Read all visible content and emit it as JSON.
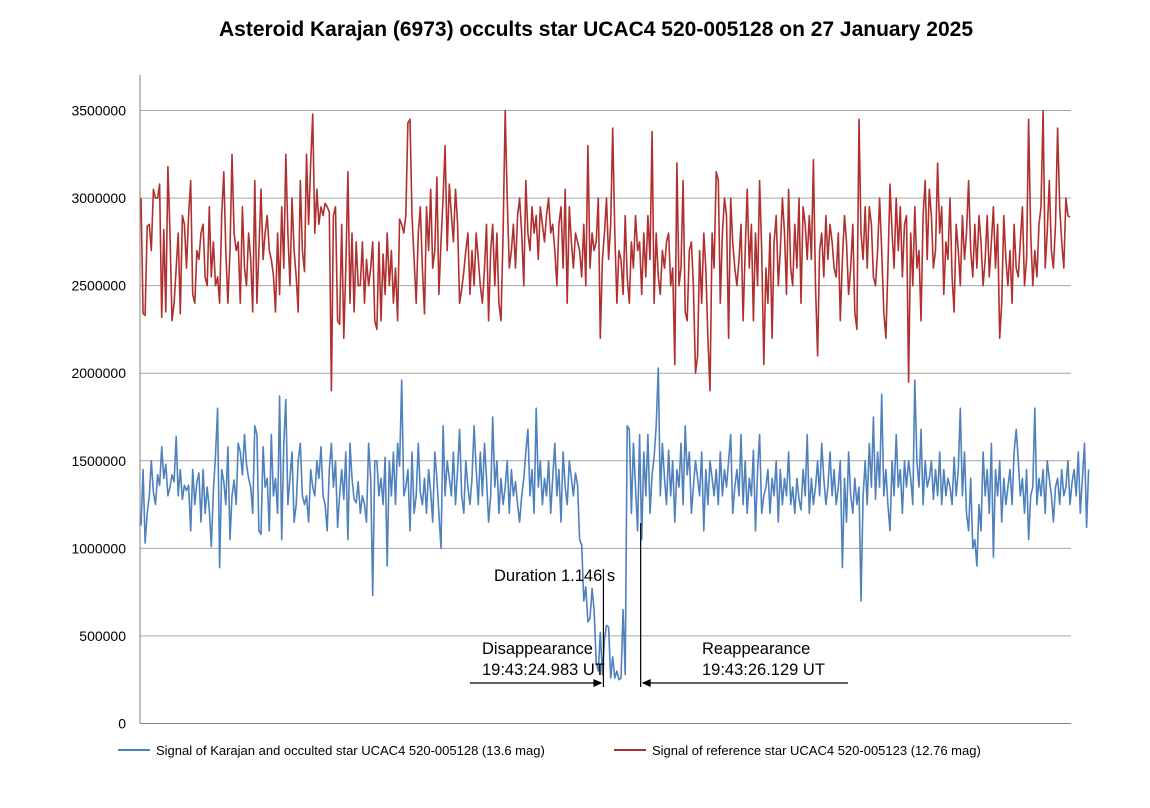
{
  "chart_data": {
    "type": "line",
    "title": "Asteroid Karajan (6973) occults star UCAC4 520-005128 on 27 January 2025",
    "xlabel": "",
    "ylabel": "",
    "ylim": [
      0,
      3700000
    ],
    "yticks": [
      0,
      500000,
      1000000,
      1500000,
      2000000,
      2500000,
      3000000,
      3500000
    ],
    "ytick_labels": [
      "0",
      "500000",
      "1000000",
      "1500000",
      "2000000",
      "2500000",
      "3000000",
      "3500000"
    ],
    "grid": true,
    "legend_position": "bottom",
    "x_samples": 450,
    "series": [
      {
        "name": "Signal of Karajan and occulted star UCAC4 520-005128 (13.6 mag)",
        "color": "#4f81bd",
        "values": [
          1130000,
          1450000,
          1030000,
          1200000,
          1300000,
          1500000,
          1320000,
          1250000,
          1420000,
          1360000,
          1580000,
          1400000,
          1480000,
          1300000,
          1350000,
          1420000,
          1380000,
          1640000,
          1300000,
          1450000,
          1280000,
          1360000,
          1330000,
          1360000,
          1100000,
          1450000,
          1250000,
          1380000,
          1430000,
          1150000,
          1450000,
          1200000,
          1350000,
          1220000,
          1010000,
          1330000,
          1530000,
          1800000,
          890000,
          1450000,
          1380000,
          1250000,
          1580000,
          1050000,
          1300000,
          1390000,
          1250000,
          1600000,
          1550000,
          1420000,
          1650000,
          1480000,
          1400000,
          1350000,
          1200000,
          1700000,
          1650000,
          1100000,
          1080000,
          1580000,
          1350000,
          1400000,
          1100000,
          1650000,
          1300000,
          1400000,
          1200000,
          1870000,
          1050000,
          1600000,
          1850000,
          1250000,
          1400000,
          1550000,
          1150000,
          1250000,
          1500000,
          1600000,
          1300000,
          1250000,
          1300000,
          1150000,
          1450000,
          1350000,
          1300000,
          1500000,
          1400000,
          1580000,
          1300000,
          1250000,
          1100000,
          1450000,
          1600000,
          1350000,
          1500000,
          1120000,
          1300000,
          1450000,
          1280000,
          1550000,
          1050000,
          1600000,
          1400000,
          1280000,
          1260000,
          1380000,
          1200000,
          1300000,
          1250000,
          1150000,
          1600000,
          1400000,
          730000,
          1500000,
          1500000,
          1300000,
          1400000,
          1250000,
          1520000,
          900000,
          1500000,
          1300000,
          1550000,
          1250000,
          1600000,
          1470000,
          1960000,
          1300000,
          1350000,
          1450000,
          1100000,
          1550000,
          1200000,
          1300000,
          1600000,
          1320000,
          1250000,
          1400000,
          1200000,
          1450000,
          1320000,
          1150000,
          1550000,
          1400000,
          1200000,
          1000000,
          1700000,
          1300000,
          1500000,
          1400000,
          1300000,
          1550000,
          1250000,
          1450000,
          1680000,
          1300000,
          1200000,
          1500000,
          1350000,
          1250000,
          1400000,
          1700000,
          1450000,
          1250000,
          1550000,
          1300000,
          1600000,
          1400000,
          1150000,
          1300000,
          1750000,
          1350000,
          1500000,
          1200000,
          1400000,
          1250000,
          1350000,
          1500000,
          1200000,
          1450000,
          1300000,
          1380000,
          1250000,
          1150000,
          1300000,
          1400000,
          1550000,
          1680000,
          1300000,
          1450000,
          1200000,
          1800000,
          1350000,
          1500000,
          1250000,
          1400000,
          1300000,
          1500000,
          1200000,
          1400000,
          1600000,
          1300000,
          1450000,
          1150000,
          1550000,
          1350000,
          1250000,
          1500000,
          1400000,
          1300000,
          1430000,
          1360000,
          1050000,
          1020000,
          700000,
          780000,
          580000,
          600000,
          770000,
          650000,
          350000,
          300000,
          520000,
          280000,
          480000,
          560000,
          550000,
          260000,
          380000,
          260000,
          300000,
          250000,
          260000,
          650000,
          280000,
          1700000,
          1680000,
          1200000,
          1600000,
          1350000,
          1100000,
          1650000,
          1050000,
          1550000,
          1300000,
          1650000,
          1200000,
          1420000,
          1520000,
          1700000,
          2030000,
          1300000,
          1600000,
          1400000,
          1250000,
          1560000,
          1300000,
          1500000,
          1150000,
          1450000,
          1350000,
          1600000,
          1250000,
          1700000,
          1420000,
          1550000,
          1200000,
          1350000,
          1500000,
          1400000,
          1300000,
          1550000,
          1100000,
          1450000,
          1250000,
          1500000,
          1400000,
          1300000,
          1450000,
          1250000,
          1550000,
          1300000,
          1450000,
          1350000,
          1500000,
          1650000,
          1200000,
          1350000,
          1450000,
          1300000,
          1650000,
          1250000,
          1500000,
          1200000,
          1400000,
          1300000,
          1560000,
          1100000,
          1450000,
          1650000,
          1200000,
          1300000,
          1350000,
          1450000,
          1200000,
          1400000,
          1300000,
          1500000,
          1150000,
          1450000,
          1250000,
          1400000,
          1300000,
          1550000,
          1250000,
          1350000,
          1200000,
          1400000,
          1280000,
          1220000,
          1450000,
          1300000,
          1650000,
          1200000,
          1400000,
          1250000,
          1350000,
          1500000,
          1300000,
          1600000,
          1400000,
          1250000,
          1350000,
          1550000,
          1300000,
          1450000,
          1250000,
          1350000,
          1500000,
          890000,
          1400000,
          1150000,
          1550000,
          1300000,
          1200000,
          1400000,
          1250000,
          1350000,
          700000,
          1300000,
          1500000,
          1250000,
          1600000,
          1350000,
          1750000,
          1280000,
          1550000,
          1350000,
          1880000,
          1300000,
          1450000,
          1250000,
          1100000,
          1500000,
          1300000,
          1650000,
          1350000,
          1450000,
          1200000,
          1500000,
          1350000,
          1500000,
          1400000,
          1250000,
          1960000,
          1500000,
          1350000,
          1680000,
          1250000,
          1500000,
          1350000,
          1400000,
          1500000,
          1280000,
          1450000,
          1300000,
          1550000,
          1250000,
          1450000,
          1300000,
          1400000,
          1350000,
          1250000,
          1520000,
          1300000,
          1450000,
          1800000,
          1300000,
          1550000,
          1200000,
          1100000,
          1400000,
          1000000,
          1050000,
          900000,
          1250000,
          1100000,
          1550000,
          1300000,
          1450000,
          1200000,
          1600000,
          950000,
          1450000,
          1300000,
          1500000,
          1150000,
          1400000,
          1250000,
          1350000,
          1450000,
          1250000,
          1550000,
          1680000,
          1500000,
          1300000,
          1400000,
          1200000,
          1450000,
          1050000,
          1300000,
          1350000,
          1800000,
          1250000,
          1400000,
          1300000,
          1450000,
          1200000,
          1500000,
          1400000,
          1300000,
          1150000,
          1350000,
          1400000,
          1250000,
          1450000,
          1300000,
          1350000,
          1500000,
          1250000,
          1380000,
          1450000,
          1300000,
          1550000,
          1200000,
          1400000,
          1600000,
          1120000,
          1450000
        ]
      },
      {
        "name": "Signal of reference star UCAC4 520-005123 (12.76 mag)",
        "color": "#b03030",
        "values": [
          3000000,
          2340000,
          2330000,
          2840000,
          2850000,
          2700000,
          3050000,
          3000000,
          3000000,
          3080000,
          2320000,
          2820000,
          2350000,
          3180000,
          2800000,
          2300000,
          2400000,
          2600000,
          2800000,
          2340000,
          2900000,
          2850000,
          2600000,
          2900000,
          3100000,
          2450000,
          2400000,
          2700000,
          2650000,
          2800000,
          2850000,
          2550000,
          2500000,
          2950000,
          2550000,
          2750000,
          2500000,
          2550000,
          2400000,
          2900000,
          3150000,
          2700000,
          2400000,
          2700000,
          3250000,
          2800000,
          2700000,
          2750000,
          2400000,
          2950000,
          2600000,
          2500000,
          2800000,
          2650000,
          2350000,
          3100000,
          2400000,
          2700000,
          3050000,
          2650000,
          2800000,
          2900000,
          2700000,
          2650000,
          2560000,
          2350000,
          2800000,
          2450000,
          2950000,
          2600000,
          3250000,
          2800000,
          2500000,
          3000000,
          2700000,
          2550000,
          2350000,
          3100000,
          2700000,
          2580000,
          3250000,
          2850000,
          3200000,
          3480000,
          2800000,
          3050000,
          2850000,
          2950000,
          2900000,
          2970000,
          2950000,
          2920000,
          1900000,
          2900000,
          2950000,
          2300000,
          2280000,
          2850000,
          2200000,
          2600000,
          3150000,
          2400000,
          2800000,
          2350000,
          2750000,
          2500000,
          2500000,
          2750000,
          2400000,
          2650000,
          2500000,
          2600000,
          2750000,
          2300000,
          2250000,
          2750000,
          2300000,
          2680000,
          2450000,
          2800000,
          2500000,
          2700000,
          2400000,
          2600000,
          2300000,
          2880000,
          2850000,
          2800000,
          2900000,
          3430000,
          3450000,
          2900000,
          2650000,
          2400000,
          2800000,
          2950000,
          2600000,
          2340000,
          2950000,
          2700000,
          3050000,
          2600000,
          2700000,
          3120000,
          2450000,
          2750000,
          3000000,
          3300000,
          2700000,
          3080000,
          2900000,
          2750000,
          3050000,
          2850000,
          2400000,
          2480000,
          2580000,
          2700000,
          2800000,
          2450000,
          2700000,
          2500000,
          2800000,
          2650000,
          2500000,
          2400000,
          2600000,
          2850000,
          2300000,
          2700000,
          2850000,
          2500000,
          2800000,
          2400000,
          2300000,
          2800000,
          3500000,
          3000000,
          2600000,
          2700000,
          2850000,
          2600000,
          2900000,
          3000000,
          2800000,
          2500000,
          3100000,
          2800000,
          2700000,
          2950000,
          2800000,
          2900000,
          2650000,
          2950000,
          2850000,
          2750000,
          2900000,
          3000000,
          2800000,
          2850000,
          2700000,
          2500000,
          2850000,
          2950000,
          2600000,
          3050000,
          2400000,
          2950000,
          2750000,
          2600000,
          2800000,
          2750000,
          2700000,
          2550000,
          2850000,
          2500000,
          3300000,
          2600000,
          2800000,
          2700000,
          2750000,
          3000000,
          2200000,
          2650000,
          2800000,
          3000000,
          2650000,
          2850000,
          3400000,
          2800000,
          2400000,
          2700000,
          2650000,
          2450000,
          2900000,
          2550000,
          2400000,
          2750000,
          2600000,
          2900000,
          2700000,
          2750000,
          2450000,
          2800000,
          2550000,
          2900000,
          2650000,
          3380000,
          2400000,
          2800000,
          2550000,
          2450000,
          2700000,
          2600000,
          2750000,
          2800000,
          2500000,
          2600000,
          2050000,
          3200000,
          2500000,
          2600000,
          3100000,
          2350000,
          2300000,
          2700000,
          2750000,
          2500000,
          2000000,
          2100000,
          2700000,
          2400000,
          2800000,
          2600000,
          2200000,
          1900000,
          2800000,
          2600000,
          3150000,
          3100000,
          2400000,
          2800000,
          3000000,
          2900000,
          2200000,
          3000000,
          2750000,
          2600000,
          2500000,
          2650000,
          2850000,
          2300000,
          2700000,
          3050000,
          2600000,
          2850000,
          2300000,
          2800000,
          2500000,
          3100000,
          2700000,
          2050000,
          2600000,
          2400000,
          2800000,
          2200000,
          2750000,
          2900000,
          2500000,
          2700000,
          3000000,
          2800000,
          2450000,
          3050000,
          2600000,
          2500000,
          2850000,
          2600000,
          3000000,
          2400000,
          2950000,
          2850000,
          2650000,
          2900000,
          2650000,
          3220000,
          2500000,
          2100000,
          2700000,
          2800000,
          2550000,
          2900000,
          2650000,
          2850000,
          2750000,
          2600000,
          2550000,
          2800000,
          2300000,
          2650000,
          2900000,
          2750000,
          2450000,
          2600000,
          2850000,
          2350000,
          2250000,
          3450000,
          2800000,
          2650000,
          2950000,
          2600000,
          2950000,
          2850000,
          2550000,
          2500000,
          2700000,
          3000000,
          2700000,
          2350000,
          2200000,
          2600000,
          3080000,
          2800000,
          2600000,
          3000000,
          2700000,
          2950000,
          2550000,
          2850000,
          2900000,
          1950000,
          2800000,
          2500000,
          2950000,
          2600000,
          2700000,
          2300000,
          2900000,
          3100000,
          2650000,
          3050000,
          2900000,
          2600000,
          2700000,
          3200000,
          2800000,
          2950000,
          2450000,
          2750000,
          2650000,
          3000000,
          2550000,
          2350000,
          2850000,
          2700000,
          2500000,
          2900000,
          2650000,
          2800000,
          3100000,
          2700000,
          2550000,
          2850000,
          2600000,
          2900000,
          2750000,
          2500000,
          2650000,
          2900000,
          2550000,
          2750000,
          2950000,
          2600000,
          2850000,
          2200000,
          2400000,
          2900000,
          2650000,
          2500000,
          2700000,
          2400000,
          2850000,
          2600000,
          2550000,
          2750000,
          2950000,
          2500000,
          2650000,
          3450000,
          2800000,
          2500000,
          2700000,
          2550000,
          2850000,
          2950000,
          3500000,
          2600000,
          2800000,
          3100000,
          2700000,
          2600000,
          2850000,
          3400000,
          2950000,
          2750000,
          2600000,
          3000000,
          2900000,
          2890000
        ]
      }
    ],
    "annotations": {
      "duration": "Duration 1.146 s",
      "disappearance_label": "Disappearance",
      "disappearance_time": "19:43:24.983 UT",
      "reappearance_label": "Reappearance",
      "reappearance_time": "19:43:26.129 UT",
      "disappearance_sample": 223.5,
      "reappearance_sample": 241.5
    }
  }
}
